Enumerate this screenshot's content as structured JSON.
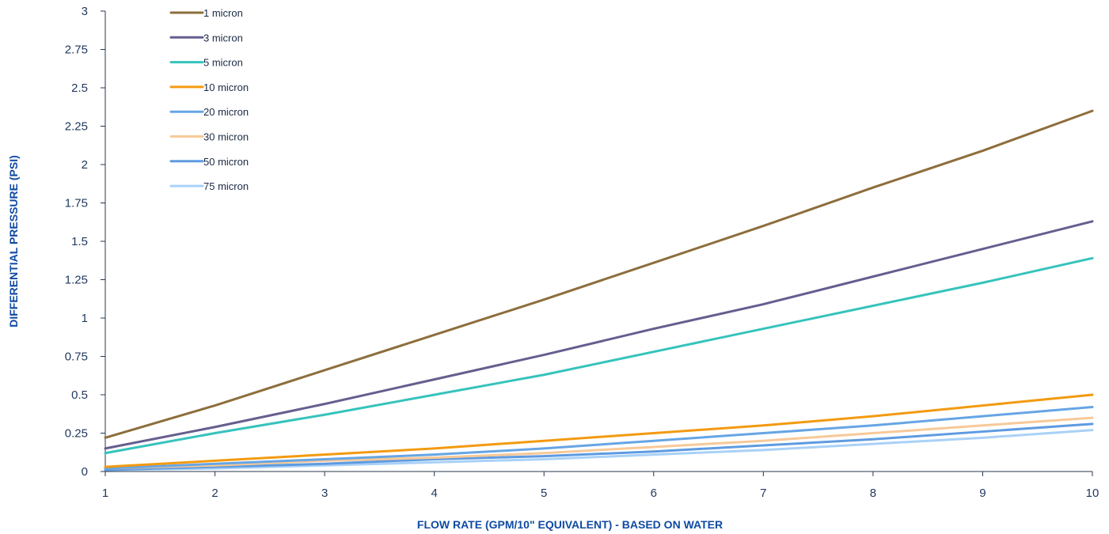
{
  "chart_data": {
    "type": "line",
    "title": "",
    "xlabel": "FLOW RATE (GPM/10\" EQUIVALENT) - BASED ON WATER",
    "ylabel": "DIFFERENTIAL PRESSURE (PSI)",
    "xlim": [
      1,
      10
    ],
    "ylim": [
      0,
      3
    ],
    "x_ticks": [
      "1",
      "2",
      "3",
      "4",
      "5",
      "6",
      "7",
      "8",
      "9",
      "10"
    ],
    "y_ticks": [
      "0",
      "0.25",
      "0.5",
      "0.75",
      "1",
      "1.25",
      "1.5",
      "1.75",
      "2",
      "2.25",
      "2.5",
      "2.75",
      "3"
    ],
    "grid": false,
    "legend_position": "top-left",
    "x": [
      1,
      2,
      3,
      4,
      5,
      6,
      7,
      8,
      9,
      10
    ],
    "series": [
      {
        "name": "1 micron",
        "color": "#8d6e3c",
        "values": [
          0.22,
          0.43,
          0.66,
          0.89,
          1.12,
          1.36,
          1.6,
          1.85,
          2.09,
          2.35
        ]
      },
      {
        "name": "3 micron",
        "color": "#665e8f",
        "values": [
          0.15,
          0.29,
          0.44,
          0.6,
          0.76,
          0.93,
          1.09,
          1.27,
          1.45,
          1.63
        ]
      },
      {
        "name": "5 micron",
        "color": "#36c3bc",
        "values": [
          0.12,
          0.25,
          0.37,
          0.5,
          0.63,
          0.78,
          0.93,
          1.08,
          1.23,
          1.39
        ]
      },
      {
        "name": "10 micron",
        "color": "#f39a10",
        "values": [
          0.03,
          0.07,
          0.11,
          0.15,
          0.2,
          0.25,
          0.3,
          0.36,
          0.43,
          0.5
        ]
      },
      {
        "name": "20 micron",
        "color": "#66a5e4",
        "values": [
          0.02,
          0.05,
          0.08,
          0.11,
          0.15,
          0.2,
          0.25,
          0.3,
          0.36,
          0.42
        ]
      },
      {
        "name": "30 micron",
        "color": "#f7c998",
        "values": [
          0.02,
          0.04,
          0.07,
          0.09,
          0.12,
          0.16,
          0.2,
          0.25,
          0.3,
          0.35
        ]
      },
      {
        "name": "50 micron",
        "color": "#5e9be0",
        "values": [
          0.01,
          0.03,
          0.05,
          0.08,
          0.1,
          0.13,
          0.17,
          0.21,
          0.26,
          0.31
        ]
      },
      {
        "name": "75 micron",
        "color": "#a9d1f7",
        "values": [
          0.01,
          0.02,
          0.04,
          0.06,
          0.08,
          0.11,
          0.14,
          0.18,
          0.22,
          0.27
        ]
      }
    ]
  },
  "colors": {
    "axis": "#27374d",
    "tick_text": "#22395f",
    "axis_title": "#0f4aa3"
  }
}
